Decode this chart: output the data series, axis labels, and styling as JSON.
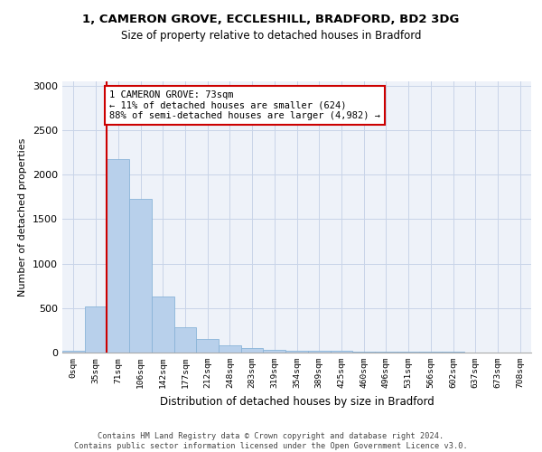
{
  "title_line1": "1, CAMERON GROVE, ECCLESHILL, BRADFORD, BD2 3DG",
  "title_line2": "Size of property relative to detached houses in Bradford",
  "xlabel": "Distribution of detached houses by size in Bradford",
  "ylabel": "Number of detached properties",
  "bin_labels": [
    "0sqm",
    "35sqm",
    "71sqm",
    "106sqm",
    "142sqm",
    "177sqm",
    "212sqm",
    "248sqm",
    "283sqm",
    "319sqm",
    "354sqm",
    "389sqm",
    "425sqm",
    "460sqm",
    "496sqm",
    "531sqm",
    "566sqm",
    "602sqm",
    "637sqm",
    "673sqm",
    "708sqm"
  ],
  "bar_heights": [
    25,
    520,
    2175,
    1725,
    630,
    280,
    150,
    80,
    55,
    35,
    25,
    20,
    18,
    15,
    12,
    10,
    8,
    6,
    5,
    4,
    3
  ],
  "bar_color": "#b8d0eb",
  "bar_edge_color": "#8ab4d8",
  "vline_color": "#cc0000",
  "annotation_text": "1 CAMERON GROVE: 73sqm\n← 11% of detached houses are smaller (624)\n88% of semi-detached houses are larger (4,982) →",
  "annotation_box_color": "#ffffff",
  "annotation_box_edgecolor": "#cc0000",
  "ylim": [
    0,
    3050
  ],
  "yticks": [
    0,
    500,
    1000,
    1500,
    2000,
    2500,
    3000
  ],
  "footer_text": "Contains HM Land Registry data © Crown copyright and database right 2024.\nContains public sector information licensed under the Open Government Licence v3.0.",
  "bg_color": "#eef2f9",
  "grid_color": "#c8d4e8"
}
